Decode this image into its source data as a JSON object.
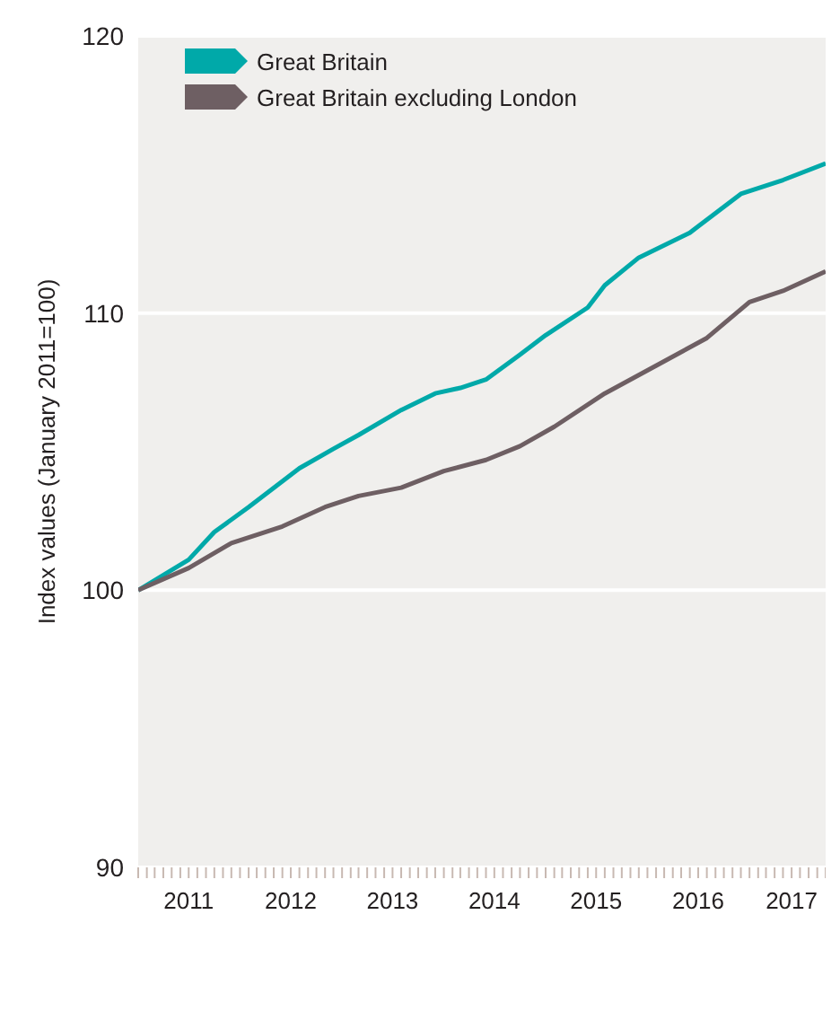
{
  "chart_data": {
    "type": "line",
    "ylabel": "Index values (January 2011=100)",
    "legend": "top left",
    "grid": "y",
    "marker": "none",
    "line_style": "solid",
    "ylim": [
      90,
      120
    ],
    "yticks": [
      90,
      100,
      110,
      120
    ],
    "xlim": [
      "2011-01",
      "2017-10"
    ],
    "xticks": [
      {
        "value": "2011-01",
        "label": null
      },
      {
        "value": "2011-02",
        "label": null
      },
      {
        "value": "2011-03",
        "label": null
      },
      {
        "value": "2011-04",
        "label": null
      },
      {
        "value": "2011-05",
        "label": null
      },
      {
        "value": "2011-06",
        "label": null
      },
      {
        "value": "2011-07",
        "label": "2011"
      },
      {
        "value": "2011-08",
        "label": null
      },
      {
        "value": "2011-09",
        "label": null
      },
      {
        "value": "2011-10",
        "label": null
      },
      {
        "value": "2011-11",
        "label": null
      },
      {
        "value": "2011-12",
        "label": null
      },
      {
        "value": "2012-01",
        "label": null
      },
      {
        "value": "2012-02",
        "label": null
      },
      {
        "value": "2012-03",
        "label": null
      },
      {
        "value": "2012-04",
        "label": null
      },
      {
        "value": "2012-05",
        "label": null
      },
      {
        "value": "2012-06",
        "label": null
      },
      {
        "value": "2012-07",
        "label": "2012"
      },
      {
        "value": "2012-08",
        "label": null
      },
      {
        "value": "2012-09",
        "label": null
      },
      {
        "value": "2012-10",
        "label": null
      },
      {
        "value": "2012-11",
        "label": null
      },
      {
        "value": "2012-12",
        "label": null
      },
      {
        "value": "2013-01",
        "label": null
      },
      {
        "value": "2013-02",
        "label": null
      },
      {
        "value": "2013-03",
        "label": null
      },
      {
        "value": "2013-04",
        "label": null
      },
      {
        "value": "2013-05",
        "label": null
      },
      {
        "value": "2013-06",
        "label": null
      },
      {
        "value": "2013-07",
        "label": "2013"
      },
      {
        "value": "2013-08",
        "label": null
      },
      {
        "value": "2013-09",
        "label": null
      },
      {
        "value": "2013-10",
        "label": null
      },
      {
        "value": "2013-11",
        "label": null
      },
      {
        "value": "2013-12",
        "label": null
      },
      {
        "value": "2014-01",
        "label": null
      },
      {
        "value": "2014-02",
        "label": null
      },
      {
        "value": "2014-03",
        "label": null
      },
      {
        "value": "2014-04",
        "label": null
      },
      {
        "value": "2014-05",
        "label": null
      },
      {
        "value": "2014-06",
        "label": null
      },
      {
        "value": "2014-07",
        "label": "2014"
      },
      {
        "value": "2014-08",
        "label": null
      },
      {
        "value": "2014-09",
        "label": null
      },
      {
        "value": "2014-10",
        "label": null
      },
      {
        "value": "2014-11",
        "label": null
      },
      {
        "value": "2014-12",
        "label": null
      },
      {
        "value": "2015-01",
        "label": null
      },
      {
        "value": "2015-02",
        "label": null
      },
      {
        "value": "2015-03",
        "label": null
      },
      {
        "value": "2015-04",
        "label": null
      },
      {
        "value": "2015-05",
        "label": null
      },
      {
        "value": "2015-06",
        "label": null
      },
      {
        "value": "2015-07",
        "label": "2015"
      },
      {
        "value": "2015-08",
        "label": null
      },
      {
        "value": "2015-09",
        "label": null
      },
      {
        "value": "2015-10",
        "label": null
      },
      {
        "value": "2015-11",
        "label": null
      },
      {
        "value": "2015-12",
        "label": null
      },
      {
        "value": "2016-01",
        "label": null
      },
      {
        "value": "2016-02",
        "label": null
      },
      {
        "value": "2016-03",
        "label": null
      },
      {
        "value": "2016-04",
        "label": null
      },
      {
        "value": "2016-05",
        "label": null
      },
      {
        "value": "2016-06",
        "label": null
      },
      {
        "value": "2016-07",
        "label": "2016"
      },
      {
        "value": "2016-08",
        "label": null
      },
      {
        "value": "2016-09",
        "label": null
      },
      {
        "value": "2016-10",
        "label": null
      },
      {
        "value": "2016-11",
        "label": null
      },
      {
        "value": "2016-12",
        "label": null
      },
      {
        "value": "2017-01",
        "label": null
      },
      {
        "value": "2017-02",
        "label": null
      },
      {
        "value": "2017-03",
        "label": null
      },
      {
        "value": "2017-04",
        "label": null
      },
      {
        "value": "2017-05",
        "label": null
      },
      {
        "value": "2017-06",
        "label": "2017"
      },
      {
        "value": "2017-07",
        "label": null
      },
      {
        "value": "2017-08",
        "label": null
      },
      {
        "value": "2017-09",
        "label": null
      },
      {
        "value": "2017-10",
        "label": null
      }
    ],
    "series": [
      {
        "name": "Great Britain",
        "color": "#00a9a9",
        "x": [
          "2011-01",
          "2011-07",
          "2011-10",
          "2012-02",
          "2012-08",
          "2012-12",
          "2013-03",
          "2013-08",
          "2013-12",
          "2014-03",
          "2014-06",
          "2014-10",
          "2015-01",
          "2015-06",
          "2015-08",
          "2015-12",
          "2016-06",
          "2016-12",
          "2017-05",
          "2017-10"
        ],
        "values": [
          100,
          101.1,
          102.1,
          103.0,
          104.4,
          105.1,
          105.6,
          106.5,
          107.1,
          107.3,
          107.6,
          108.5,
          109.2,
          110.2,
          111.0,
          112.0,
          112.9,
          114.3,
          114.8,
          115.4
        ]
      },
      {
        "name": "Great Britain excluding London",
        "color": "#6e5f63",
        "x": [
          "2011-01",
          "2011-07",
          "2011-12",
          "2012-06",
          "2012-11",
          "2013-03",
          "2013-08",
          "2014-01",
          "2014-06",
          "2014-10",
          "2015-02",
          "2015-08",
          "2016-02",
          "2016-08",
          "2017-01",
          "2017-05",
          "2017-10"
        ],
        "values": [
          100,
          100.8,
          101.7,
          102.3,
          103.0,
          103.4,
          103.7,
          104.3,
          104.7,
          105.2,
          105.9,
          107.1,
          108.1,
          109.1,
          110.4,
          110.8,
          111.5
        ]
      }
    ]
  }
}
